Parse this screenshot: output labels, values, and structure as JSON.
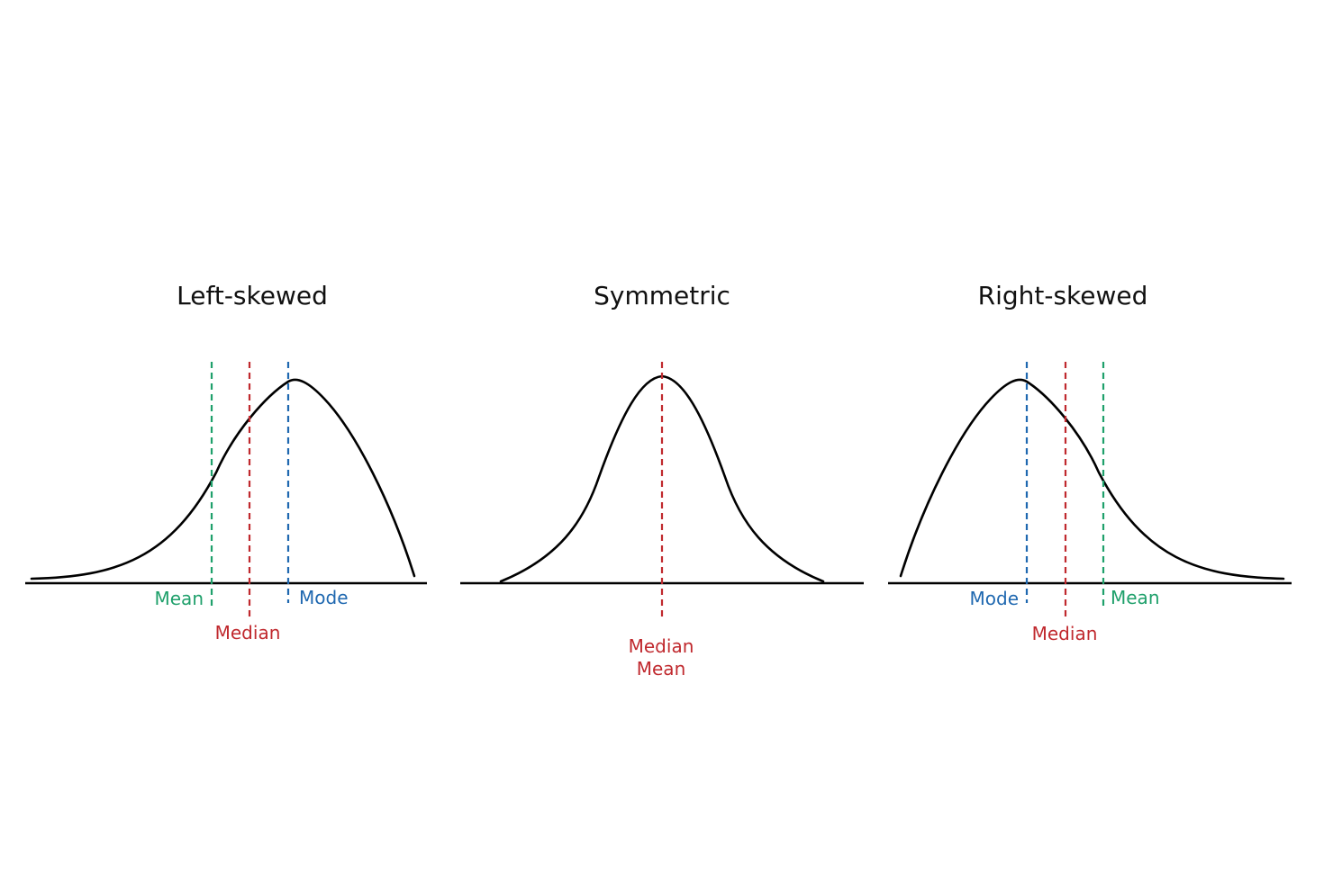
{
  "colors": {
    "mean": "#1fa06b",
    "median": "#c0292e",
    "mode": "#1f68b0",
    "curve": "#000000"
  },
  "panels": [
    {
      "id": "left",
      "title": "Left-skewed",
      "labels": {
        "mean": "Mean",
        "median": "Median",
        "mode": "Mode"
      }
    },
    {
      "id": "symmetric",
      "title": "Symmetric",
      "labels": {
        "median": "Median",
        "mean": "Mean"
      }
    },
    {
      "id": "right",
      "title": "Right-skewed",
      "labels": {
        "mode": "Mode",
        "median": "Median",
        "mean": "Mean"
      }
    }
  ]
}
